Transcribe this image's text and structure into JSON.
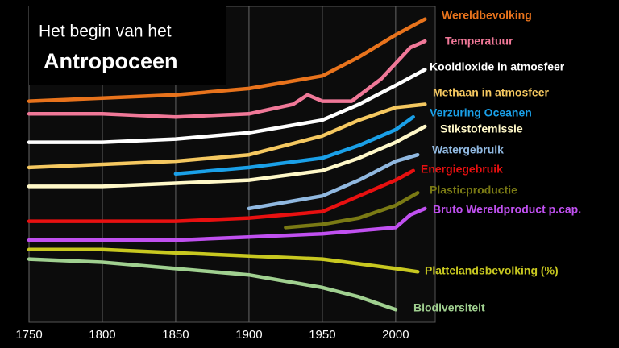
{
  "chart_data": {
    "type": "line",
    "title": "Het begin van het",
    "subtitle": "Antropoceen",
    "xlim": [
      1750,
      2027
    ],
    "xticks": [
      1750,
      1800,
      1850,
      1900,
      1950,
      2000
    ],
    "ylim": [
      0,
      100
    ],
    "grid": true,
    "series": [
      {
        "name": "Wereldbevolking",
        "color": "#e8731c",
        "x": [
          1750,
          1800,
          1850,
          1900,
          1950,
          1975,
          2000,
          2020
        ],
        "values": [
          70,
          71,
          72,
          74,
          78,
          84,
          91,
          96
        ]
      },
      {
        "name": "Temperatuur",
        "color": "#f07898",
        "x": [
          1750,
          1800,
          1850,
          1900,
          1930,
          1940,
          1950,
          1970,
          1990,
          2000,
          2010,
          2020
        ],
        "values": [
          66,
          66,
          65,
          66,
          69,
          72,
          70,
          70,
          77,
          82,
          87,
          89
        ]
      },
      {
        "name": "Kooldioxide in atmosfeer",
        "color": "#ffffff",
        "x": [
          1750,
          1800,
          1850,
          1900,
          1950,
          1975,
          2000,
          2020
        ],
        "values": [
          57,
          57,
          58,
          60,
          64,
          69,
          75,
          80
        ]
      },
      {
        "name": "Methaan in atmosfeer",
        "color": "#f5c860",
        "x": [
          1750,
          1800,
          1850,
          1900,
          1950,
          1975,
          2000,
          2020
        ],
        "values": [
          49,
          50,
          51,
          53,
          59,
          64,
          68,
          69
        ]
      },
      {
        "name": "Verzuring Oceanen",
        "color": "#1aa0e8",
        "x": [
          1850,
          1900,
          1950,
          1975,
          2000,
          2012
        ],
        "values": [
          47,
          49,
          52,
          56,
          61,
          65
        ]
      },
      {
        "name": "Stikstofemissie",
        "color": "#fff8c8",
        "x": [
          1750,
          1800,
          1850,
          1900,
          1950,
          1975,
          2000,
          2020
        ],
        "values": [
          43,
          43,
          44,
          45,
          48,
          52,
          57,
          62
        ]
      },
      {
        "name": "Watergebruik",
        "color": "#90b8e0",
        "x": [
          1900,
          1950,
          1975,
          2000,
          2015
        ],
        "values": [
          36,
          40,
          45,
          51,
          53
        ]
      },
      {
        "name": "Energiegebruik",
        "color": "#e81010",
        "x": [
          1750,
          1850,
          1900,
          1950,
          1975,
          2000,
          2012
        ],
        "values": [
          32,
          32,
          33,
          35,
          40,
          45,
          48
        ]
      },
      {
        "name": "Plasticproductie",
        "color": "#7a7a14",
        "x": [
          1925,
          1950,
          1975,
          2000,
          2015
        ],
        "values": [
          30,
          31,
          33,
          37,
          41
        ]
      },
      {
        "name": "Bruto Wereldproduct p.cap.",
        "color": "#c050f0",
        "x": [
          1750,
          1850,
          1900,
          1950,
          2000,
          2010,
          2020
        ],
        "values": [
          26,
          26,
          27,
          28,
          30,
          34,
          36
        ]
      },
      {
        "name": "Plattelandsbevolking (%)",
        "color": "#c8c820",
        "x": [
          1750,
          1800,
          1850,
          1900,
          1950,
          2000,
          2015
        ],
        "values": [
          23,
          23,
          22,
          21,
          20,
          17,
          16
        ]
      },
      {
        "name": "Biodiversiteit",
        "color": "#a0d090",
        "x": [
          1750,
          1800,
          1850,
          1900,
          1950,
          1975,
          2000
        ],
        "values": [
          20,
          19,
          17,
          15,
          11,
          8,
          4
        ]
      }
    ]
  }
}
